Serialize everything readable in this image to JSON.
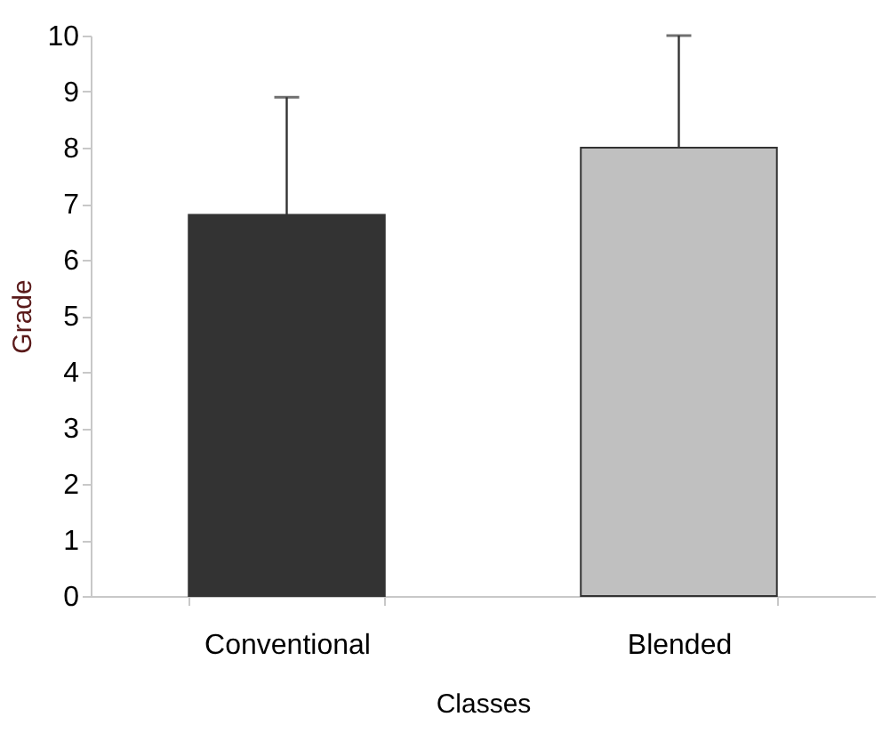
{
  "chart_data": {
    "type": "bar",
    "xlabel": "Classes",
    "ylabel": "Grade",
    "categories": [
      "Conventional",
      "Blended"
    ],
    "values": [
      6.8,
      8.0
    ],
    "colors": [
      "#333333",
      "#c0c0c0"
    ],
    "errors": [
      [
        6.8,
        8.9
      ],
      [
        8.0,
        10.0
      ]
    ],
    "ylim": [
      0,
      10
    ],
    "yticks": [
      0,
      1,
      2,
      3,
      4,
      5,
      6,
      7,
      8,
      9,
      10
    ],
    "grid": false
  }
}
